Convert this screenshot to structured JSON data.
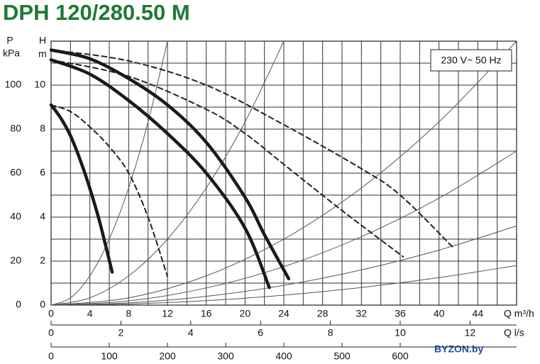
{
  "chart_data": {
    "type": "line",
    "title": "DPH 120/280.50 M",
    "ylabel": "H",
    "yunit": "m",
    "y2label": "P",
    "y2unit": "kPa",
    "ylim": [
      0,
      12
    ],
    "yticks": [
      0,
      2,
      4,
      6,
      8,
      10
    ],
    "yminor": [
      1,
      3,
      5,
      7,
      9,
      11
    ],
    "y2lim": [
      0,
      120
    ],
    "y2ticks": [
      0,
      20,
      40,
      60,
      80,
      100
    ],
    "xlabel": "Q m³/h",
    "xlim": [
      0,
      48
    ],
    "xticks": [
      0,
      4,
      8,
      12,
      16,
      20,
      24,
      28,
      32,
      36,
      40,
      44
    ],
    "xminor": [
      2,
      6,
      10,
      14,
      18,
      22,
      26,
      30,
      34,
      38,
      42,
      46
    ],
    "x2label": "Q l/s",
    "x2lim": [
      0,
      13.333
    ],
    "x2ticks": [
      0,
      2,
      4,
      6,
      8,
      10,
      12
    ],
    "x3lim": [
      0,
      800
    ],
    "x3ticks": [
      0,
      100,
      200,
      300,
      400,
      500,
      600
    ],
    "grid": true,
    "annotation": "230 V~ 50 Hz",
    "watermark": "BYZON.by",
    "series": [
      {
        "line": "thin",
        "color": "#555",
        "x": [
          0,
          2,
          4,
          6,
          8,
          10,
          12
        ],
        "values": [
          0,
          0.33,
          1.33,
          3,
          5.33,
          8.33,
          12
        ]
      },
      {
        "line": "thin",
        "color": "#555",
        "x": [
          0,
          4,
          8,
          12,
          16,
          20,
          24
        ],
        "values": [
          0,
          0.33,
          1.33,
          3,
          5.33,
          8.33,
          12
        ]
      },
      {
        "line": "thin",
        "color": "#555",
        "x": [
          0,
          8,
          16,
          24,
          32,
          40,
          48
        ],
        "values": [
          0,
          0.33,
          1.33,
          3,
          5.33,
          8.33,
          12
        ]
      },
      {
        "line": "thin",
        "color": "#555",
        "x": [
          0,
          8,
          16,
          24,
          32,
          40,
          48
        ],
        "values": [
          0,
          0.19,
          0.78,
          1.75,
          3.11,
          4.86,
          7
        ]
      },
      {
        "line": "thin",
        "color": "#555",
        "x": [
          0,
          8,
          16,
          24,
          32,
          40,
          48
        ],
        "values": [
          0,
          0.1,
          0.4,
          0.9,
          1.6,
          2.5,
          3.6
        ]
      },
      {
        "line": "thin",
        "color": "#555",
        "x": [
          0,
          8,
          16,
          24,
          32,
          40,
          48
        ],
        "values": [
          0,
          0.05,
          0.2,
          0.45,
          0.8,
          1.25,
          1.8
        ]
      },
      {
        "line": "dashed",
        "color": "#222",
        "x": [
          0,
          8,
          16,
          24,
          32,
          36,
          41.5
        ],
        "values": [
          11.6,
          11.1,
          10.0,
          8.2,
          6.2,
          5.0,
          2.6
        ]
      },
      {
        "line": "dashed",
        "color": "#222",
        "x": [
          0,
          8,
          16,
          20,
          24,
          30,
          36.3
        ],
        "values": [
          11.15,
          10.4,
          8.9,
          7.8,
          6.4,
          4.3,
          2.2
        ]
      },
      {
        "line": "dashed",
        "color": "#222",
        "x": [
          0,
          2,
          4,
          6,
          8,
          10,
          12
        ],
        "values": [
          9.1,
          8.8,
          8.1,
          7.2,
          6.0,
          4.0,
          1.3
        ]
      },
      {
        "line": "bold",
        "color": "#1a1a1a",
        "x": [
          0,
          1,
          2,
          3,
          4,
          5,
          6.3
        ],
        "values": [
          9.1,
          8.5,
          7.7,
          6.6,
          5.3,
          3.8,
          1.5
        ]
      },
      {
        "line": "bold",
        "color": "#1a1a1a",
        "x": [
          0,
          4,
          8,
          12,
          16,
          20,
          22.5
        ],
        "values": [
          11.15,
          10.5,
          9.3,
          7.8,
          6.0,
          3.5,
          0.8
        ]
      },
      {
        "line": "bold",
        "color": "#1a1a1a",
        "x": [
          0,
          4,
          8,
          12,
          16,
          20,
          22,
          24.5
        ],
        "values": [
          11.6,
          11.2,
          10.3,
          9.1,
          7.4,
          4.9,
          3.2,
          1.2
        ]
      }
    ]
  }
}
